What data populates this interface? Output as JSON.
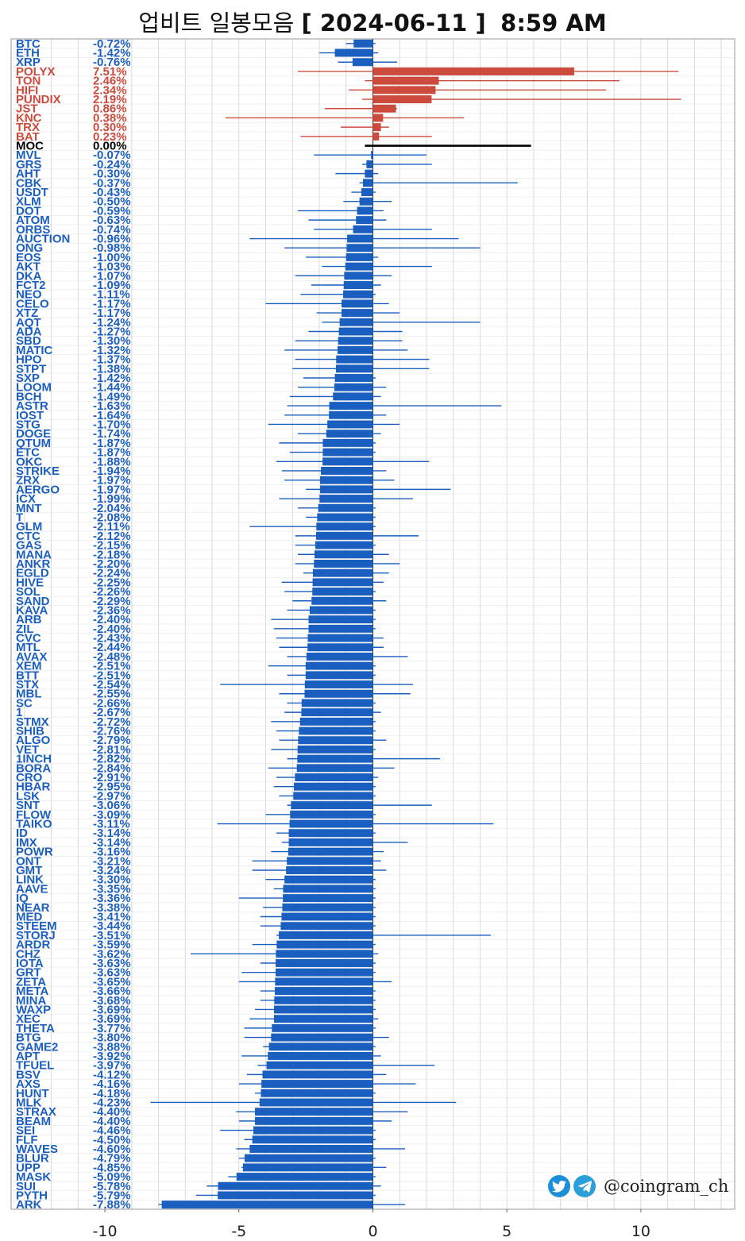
{
  "header": {
    "title_prefix": "업비트 일봉모음",
    "title_date": "[ 2024-06-11 ]",
    "title_time": "8:59 AM"
  },
  "watermark": {
    "handle": "@coingram_ch",
    "icons": [
      "twitter-icon",
      "telegram-icon"
    ]
  },
  "colors": {
    "negative": "#1a5fbf",
    "positive": "#cc4b3c",
    "neutral": "#000000",
    "grid": "#d9d9d9"
  },
  "chart_data": {
    "type": "bar",
    "orientation": "horizontal",
    "xlim": [
      -13.5,
      13.5
    ],
    "xticks": [
      -10,
      -5,
      0,
      5,
      10
    ],
    "grid": true,
    "rows": [
      {
        "sym": "BTC",
        "pct": "-0.72%",
        "v": -0.72,
        "lo": -1.0,
        "hi": 0.1
      },
      {
        "sym": "ETH",
        "pct": "-1.42%",
        "v": -1.42,
        "lo": -2.0,
        "hi": 0.2
      },
      {
        "sym": "XRP",
        "pct": "-0.76%",
        "v": -0.76,
        "lo": -1.3,
        "hi": 0.9
      },
      {
        "sym": "POLYX",
        "pct": "7.51%",
        "v": 7.51,
        "lo": -2.8,
        "hi": 11.4
      },
      {
        "sym": "TON",
        "pct": "2.46%",
        "v": 2.46,
        "lo": -0.3,
        "hi": 9.2
      },
      {
        "sym": "HIFI",
        "pct": "2.34%",
        "v": 2.34,
        "lo": -0.9,
        "hi": 8.7
      },
      {
        "sym": "PUNDIX",
        "pct": "2.19%",
        "v": 2.19,
        "lo": -0.4,
        "hi": 11.5
      },
      {
        "sym": "JST",
        "pct": "0.86%",
        "v": 0.86,
        "lo": -1.8,
        "hi": 0.9
      },
      {
        "sym": "KNC",
        "pct": "0.38%",
        "v": 0.38,
        "lo": -5.5,
        "hi": 3.4
      },
      {
        "sym": "TRX",
        "pct": "0.30%",
        "v": 0.3,
        "lo": -1.2,
        "hi": 0.6
      },
      {
        "sym": "BAT",
        "pct": "0.23%",
        "v": 0.23,
        "lo": -2.7,
        "hi": 2.2
      },
      {
        "sym": "MOC",
        "pct": "0.00%",
        "v": 0.0,
        "lo": -0.3,
        "hi": 5.9
      },
      {
        "sym": "MVL",
        "pct": "-0.07%",
        "v": -0.07,
        "lo": -2.2,
        "hi": 2.0
      },
      {
        "sym": "GRS",
        "pct": "-0.24%",
        "v": -0.24,
        "lo": -0.4,
        "hi": 2.2
      },
      {
        "sym": "AHT",
        "pct": "-0.30%",
        "v": -0.3,
        "lo": -1.4,
        "hi": 0.2
      },
      {
        "sym": "CBK",
        "pct": "-0.37%",
        "v": -0.37,
        "lo": -0.5,
        "hi": 5.4
      },
      {
        "sym": "USDT",
        "pct": "-0.43%",
        "v": -0.43,
        "lo": -0.8,
        "hi": 0.1
      },
      {
        "sym": "XLM",
        "pct": "-0.50%",
        "v": -0.5,
        "lo": -1.1,
        "hi": 0.7
      },
      {
        "sym": "DOT",
        "pct": "-0.59%",
        "v": -0.59,
        "lo": -2.8,
        "hi": 0.4
      },
      {
        "sym": "ATOM",
        "pct": "-0.63%",
        "v": -0.63,
        "lo": -2.4,
        "hi": 0.5
      },
      {
        "sym": "ORBS",
        "pct": "-0.74%",
        "v": -0.74,
        "lo": -2.2,
        "hi": 2.2
      },
      {
        "sym": "AUCTION",
        "pct": "-0.96%",
        "v": -0.96,
        "lo": -4.6,
        "hi": 3.2
      },
      {
        "sym": "ONG",
        "pct": "-0.98%",
        "v": -0.98,
        "lo": -3.3,
        "hi": 4.0
      },
      {
        "sym": "EOS",
        "pct": "-1.00%",
        "v": -1.0,
        "lo": -2.5,
        "hi": 0.2
      },
      {
        "sym": "AKT",
        "pct": "-1.03%",
        "v": -1.03,
        "lo": -1.9,
        "hi": 2.2
      },
      {
        "sym": "DKA",
        "pct": "-1.07%",
        "v": -1.07,
        "lo": -2.9,
        "hi": 0.7
      },
      {
        "sym": "FCT2",
        "pct": "-1.09%",
        "v": -1.09,
        "lo": -2.3,
        "hi": 0.3
      },
      {
        "sym": "NEO",
        "pct": "-1.11%",
        "v": -1.11,
        "lo": -2.7,
        "hi": 0.1
      },
      {
        "sym": "CELO",
        "pct": "-1.17%",
        "v": -1.17,
        "lo": -4.0,
        "hi": 0.6
      },
      {
        "sym": "XTZ",
        "pct": "-1.17%",
        "v": -1.17,
        "lo": -2.1,
        "hi": 1.0
      },
      {
        "sym": "AQT",
        "pct": "-1.24%",
        "v": -1.24,
        "lo": -1.9,
        "hi": 4.0
      },
      {
        "sym": "ADA",
        "pct": "-1.27%",
        "v": -1.27,
        "lo": -2.4,
        "hi": 1.1
      },
      {
        "sym": "SBD",
        "pct": "-1.30%",
        "v": -1.3,
        "lo": -2.9,
        "hi": 1.1
      },
      {
        "sym": "MATIC",
        "pct": "-1.32%",
        "v": -1.32,
        "lo": -3.3,
        "hi": 1.3
      },
      {
        "sym": "HPO",
        "pct": "-1.37%",
        "v": -1.37,
        "lo": -2.9,
        "hi": 2.1
      },
      {
        "sym": "STPT",
        "pct": "-1.38%",
        "v": -1.38,
        "lo": -3.0,
        "hi": 2.1
      },
      {
        "sym": "SXP",
        "pct": "-1.42%",
        "v": -1.42,
        "lo": -2.6,
        "hi": 0.1
      },
      {
        "sym": "LOOM",
        "pct": "-1.44%",
        "v": -1.44,
        "lo": -2.8,
        "hi": 0.5
      },
      {
        "sym": "BCH",
        "pct": "-1.49%",
        "v": -1.49,
        "lo": -3.1,
        "hi": 0.3
      },
      {
        "sym": "ASTR",
        "pct": "-1.63%",
        "v": -1.63,
        "lo": -3.2,
        "hi": 4.8
      },
      {
        "sym": "IOST",
        "pct": "-1.64%",
        "v": -1.64,
        "lo": -3.3,
        "hi": 0.5
      },
      {
        "sym": "STG",
        "pct": "-1.70%",
        "v": -1.7,
        "lo": -3.9,
        "hi": 1.0
      },
      {
        "sym": "DOGE",
        "pct": "-1.74%",
        "v": -1.74,
        "lo": -2.8,
        "hi": 0.3
      },
      {
        "sym": "QTUM",
        "pct": "-1.87%",
        "v": -1.87,
        "lo": -3.5,
        "hi": 0.1
      },
      {
        "sym": "ETC",
        "pct": "-1.87%",
        "v": -1.87,
        "lo": -3.1,
        "hi": 0.1
      },
      {
        "sym": "OKC",
        "pct": "-1.88%",
        "v": -1.88,
        "lo": -3.6,
        "hi": 2.1
      },
      {
        "sym": "STRIKE",
        "pct": "-1.94%",
        "v": -1.94,
        "lo": -3.4,
        "hi": 0.5
      },
      {
        "sym": "ZRX",
        "pct": "-1.97%",
        "v": -1.97,
        "lo": -3.3,
        "hi": 0.8
      },
      {
        "sym": "AERGO",
        "pct": "-1.97%",
        "v": -1.97,
        "lo": -2.5,
        "hi": 2.9
      },
      {
        "sym": "ICX",
        "pct": "-1.99%",
        "v": -1.99,
        "lo": -3.5,
        "hi": 1.5
      },
      {
        "sym": "MNT",
        "pct": "-2.04%",
        "v": -2.04,
        "lo": -2.8,
        "hi": 0.1
      },
      {
        "sym": "T",
        "pct": "-2.08%",
        "v": -2.08,
        "lo": -2.5,
        "hi": 0.1
      },
      {
        "sym": "GLM",
        "pct": "-2.11%",
        "v": -2.11,
        "lo": -4.6,
        "hi": 0.1
      },
      {
        "sym": "CTC",
        "pct": "-2.12%",
        "v": -2.12,
        "lo": -2.9,
        "hi": 1.7
      },
      {
        "sym": "GAS",
        "pct": "-2.15%",
        "v": -2.15,
        "lo": -2.9,
        "hi": 0.1
      },
      {
        "sym": "MANA",
        "pct": "-2.18%",
        "v": -2.18,
        "lo": -2.8,
        "hi": 0.6
      },
      {
        "sym": "ANKR",
        "pct": "-2.20%",
        "v": -2.2,
        "lo": -2.9,
        "hi": 1.0
      },
      {
        "sym": "EGLD",
        "pct": "-2.24%",
        "v": -2.24,
        "lo": -2.6,
        "hi": 0.6
      },
      {
        "sym": "HIVE",
        "pct": "-2.25%",
        "v": -2.25,
        "lo": -3.4,
        "hi": 0.4
      },
      {
        "sym": "SOL",
        "pct": "-2.26%",
        "v": -2.26,
        "lo": -3.3,
        "hi": 0.1
      },
      {
        "sym": "SAND",
        "pct": "-2.29%",
        "v": -2.29,
        "lo": -3.0,
        "hi": 0.5
      },
      {
        "sym": "KAVA",
        "pct": "-2.36%",
        "v": -2.36,
        "lo": -3.2,
        "hi": 0.1
      },
      {
        "sym": "ARB",
        "pct": "-2.40%",
        "v": -2.4,
        "lo": -3.8,
        "hi": 0.1
      },
      {
        "sym": "ZIL",
        "pct": "-2.40%",
        "v": -2.4,
        "lo": -3.7,
        "hi": 0.1
      },
      {
        "sym": "CVC",
        "pct": "-2.43%",
        "v": -2.43,
        "lo": -3.6,
        "hi": 0.4
      },
      {
        "sym": "MTL",
        "pct": "-2.44%",
        "v": -2.44,
        "lo": -3.5,
        "hi": 0.4
      },
      {
        "sym": "AVAX",
        "pct": "-2.48%",
        "v": -2.48,
        "lo": -3.2,
        "hi": 1.3
      },
      {
        "sym": "XEM",
        "pct": "-2.51%",
        "v": -2.51,
        "lo": -3.9,
        "hi": 0.1
      },
      {
        "sym": "BTT",
        "pct": "-2.51%",
        "v": -2.51,
        "lo": -3.2,
        "hi": 0.1
      },
      {
        "sym": "STX",
        "pct": "-2.54%",
        "v": -2.54,
        "lo": -5.7,
        "hi": 1.5
      },
      {
        "sym": "MBL",
        "pct": "-2.55%",
        "v": -2.55,
        "lo": -3.5,
        "hi": 1.4
      },
      {
        "sym": "SC",
        "pct": "-2.66%",
        "v": -2.66,
        "lo": -3.2,
        "hi": 0.1
      },
      {
        "sym": "1",
        "pct": "-2.67%",
        "v": -2.67,
        "lo": -3.3,
        "hi": 0.3
      },
      {
        "sym": "STMX",
        "pct": "-2.72%",
        "v": -2.72,
        "lo": -3.8,
        "hi": 0.1
      },
      {
        "sym": "SHIB",
        "pct": "-2.76%",
        "v": -2.76,
        "lo": -3.6,
        "hi": 0.1
      },
      {
        "sym": "ALGO",
        "pct": "-2.79%",
        "v": -2.79,
        "lo": -3.5,
        "hi": 0.5
      },
      {
        "sym": "VET",
        "pct": "-2.81%",
        "v": -2.81,
        "lo": -3.8,
        "hi": 0.1
      },
      {
        "sym": "1INCH",
        "pct": "-2.82%",
        "v": -2.82,
        "lo": -3.2,
        "hi": 2.5
      },
      {
        "sym": "BORA",
        "pct": "-2.84%",
        "v": -2.84,
        "lo": -3.9,
        "hi": 0.8
      },
      {
        "sym": "CRO",
        "pct": "-2.91%",
        "v": -2.91,
        "lo": -3.6,
        "hi": 0.2
      },
      {
        "sym": "HBAR",
        "pct": "-2.95%",
        "v": -2.95,
        "lo": -3.7,
        "hi": 0.1
      },
      {
        "sym": "LSK",
        "pct": "-2.97%",
        "v": -2.97,
        "lo": -3.5,
        "hi": 0.1
      },
      {
        "sym": "SNT",
        "pct": "-3.06%",
        "v": -3.06,
        "lo": -3.2,
        "hi": 2.2
      },
      {
        "sym": "FLOW",
        "pct": "-3.09%",
        "v": -3.09,
        "lo": -4.0,
        "hi": 0.1
      },
      {
        "sym": "TAIKO",
        "pct": "-3.11%",
        "v": -3.11,
        "lo": -5.8,
        "hi": 4.5
      },
      {
        "sym": "ID",
        "pct": "-3.14%",
        "v": -3.14,
        "lo": -3.6,
        "hi": 0.1
      },
      {
        "sym": "IMX",
        "pct": "-3.14%",
        "v": -3.14,
        "lo": -3.4,
        "hi": 1.3
      },
      {
        "sym": "POWR",
        "pct": "-3.16%",
        "v": -3.16,
        "lo": -3.8,
        "hi": 0.4
      },
      {
        "sym": "ONT",
        "pct": "-3.21%",
        "v": -3.21,
        "lo": -4.5,
        "hi": 0.3
      },
      {
        "sym": "GMT",
        "pct": "-3.24%",
        "v": -3.24,
        "lo": -4.5,
        "hi": 0.5
      },
      {
        "sym": "LINK",
        "pct": "-3.30%",
        "v": -3.3,
        "lo": -4.0,
        "hi": 0.1
      },
      {
        "sym": "AAVE",
        "pct": "-3.35%",
        "v": -3.35,
        "lo": -3.7,
        "hi": 0.1
      },
      {
        "sym": "IQ",
        "pct": "-3.36%",
        "v": -3.36,
        "lo": -5.0,
        "hi": 0.1
      },
      {
        "sym": "NEAR",
        "pct": "-3.38%",
        "v": -3.38,
        "lo": -4.1,
        "hi": 0.1
      },
      {
        "sym": "MED",
        "pct": "-3.41%",
        "v": -3.41,
        "lo": -4.2,
        "hi": 0.1
      },
      {
        "sym": "STEEM",
        "pct": "-3.44%",
        "v": -3.44,
        "lo": -4.2,
        "hi": 0.1
      },
      {
        "sym": "STORJ",
        "pct": "-3.51%",
        "v": -3.51,
        "lo": -3.6,
        "hi": 4.4
      },
      {
        "sym": "ARDR",
        "pct": "-3.59%",
        "v": -3.59,
        "lo": -4.5,
        "hi": 0.1
      },
      {
        "sym": "CHZ",
        "pct": "-3.62%",
        "v": -3.62,
        "lo": -6.8,
        "hi": 0.2
      },
      {
        "sym": "IOTA",
        "pct": "-3.63%",
        "v": -3.63,
        "lo": -4.2,
        "hi": 0.1
      },
      {
        "sym": "GRT",
        "pct": "-3.63%",
        "v": -3.63,
        "lo": -4.9,
        "hi": 0.1
      },
      {
        "sym": "ZETA",
        "pct": "-3.65%",
        "v": -3.65,
        "lo": -5.0,
        "hi": 0.7
      },
      {
        "sym": "META",
        "pct": "-3.66%",
        "v": -3.66,
        "lo": -4.2,
        "hi": 0.1
      },
      {
        "sym": "MINA",
        "pct": "-3.68%",
        "v": -3.68,
        "lo": -4.2,
        "hi": 0.1
      },
      {
        "sym": "WAXP",
        "pct": "-3.69%",
        "v": -3.69,
        "lo": -4.4,
        "hi": 0.1
      },
      {
        "sym": "XEC",
        "pct": "-3.69%",
        "v": -3.69,
        "lo": -4.6,
        "hi": 0.2
      },
      {
        "sym": "THETA",
        "pct": "-3.77%",
        "v": -3.77,
        "lo": -4.8,
        "hi": 0.1
      },
      {
        "sym": "BTG",
        "pct": "-3.80%",
        "v": -3.8,
        "lo": -4.8,
        "hi": 0.6
      },
      {
        "sym": "GAME2",
        "pct": "-3.88%",
        "v": -3.88,
        "lo": -4.1,
        "hi": 0.1
      },
      {
        "sym": "APT",
        "pct": "-3.92%",
        "v": -3.92,
        "lo": -4.9,
        "hi": 0.3
      },
      {
        "sym": "TFUEL",
        "pct": "-3.97%",
        "v": -3.97,
        "lo": -4.3,
        "hi": 2.3
      },
      {
        "sym": "BSV",
        "pct": "-4.12%",
        "v": -4.12,
        "lo": -4.7,
        "hi": 0.5
      },
      {
        "sym": "AXS",
        "pct": "-4.16%",
        "v": -4.16,
        "lo": -5.0,
        "hi": 1.6
      },
      {
        "sym": "HUNT",
        "pct": "-4.18%",
        "v": -4.18,
        "lo": -4.4,
        "hi": 0.1
      },
      {
        "sym": "MLK",
        "pct": "-4.23%",
        "v": -4.23,
        "lo": -8.3,
        "hi": 3.1
      },
      {
        "sym": "STRAX",
        "pct": "-4.40%",
        "v": -4.4,
        "lo": -5.1,
        "hi": 1.3
      },
      {
        "sym": "BEAM",
        "pct": "-4.40%",
        "v": -4.4,
        "lo": -5.0,
        "hi": 0.7
      },
      {
        "sym": "SEI",
        "pct": "-4.46%",
        "v": -4.46,
        "lo": -5.7,
        "hi": 0.1
      },
      {
        "sym": "FLF",
        "pct": "-4.50%",
        "v": -4.5,
        "lo": -4.8,
        "hi": 0.1
      },
      {
        "sym": "WAVES",
        "pct": "-4.60%",
        "v": -4.6,
        "lo": -5.1,
        "hi": 1.2
      },
      {
        "sym": "BLUR",
        "pct": "-4.79%",
        "v": -4.79,
        "lo": -5.0,
        "hi": 0.1
      },
      {
        "sym": "UPP",
        "pct": "-4.85%",
        "v": -4.85,
        "lo": -4.9,
        "hi": 0.5
      },
      {
        "sym": "MASK",
        "pct": "-5.09%",
        "v": -5.09,
        "lo": -5.4,
        "hi": 0.1
      },
      {
        "sym": "SUI",
        "pct": "-5.78%",
        "v": -5.78,
        "lo": -6.2,
        "hi": 0.3
      },
      {
        "sym": "PYTH",
        "pct": "-5.79%",
        "v": -5.79,
        "lo": -6.6,
        "hi": 0.1
      },
      {
        "sym": "ARK",
        "pct": "-7.88%",
        "v": -7.88,
        "lo": -8.0,
        "hi": 1.2
      }
    ]
  }
}
